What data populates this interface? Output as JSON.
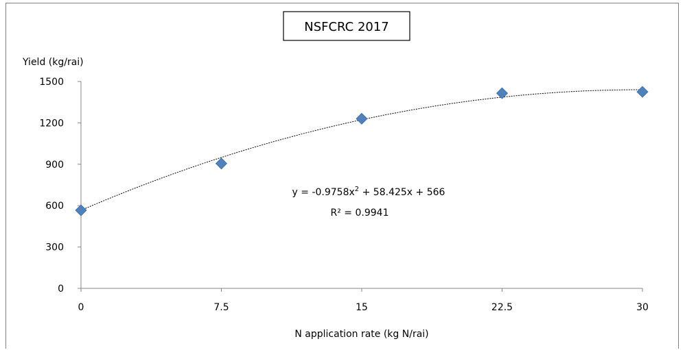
{
  "chart_data": {
    "type": "scatter",
    "title": "NSFCRC 2017",
    "xlabel": "N application rate (kg N/rai)",
    "ylabel": "Yield (kg/rai)",
    "xlim": [
      0,
      30
    ],
    "ylim": [
      0,
      1500
    ],
    "x_ticks": [
      "0",
      "7.5",
      "15",
      "22.5",
      "30"
    ],
    "y_ticks": [
      "0",
      "300",
      "600",
      "900",
      "1200",
      "1500"
    ],
    "series": [
      {
        "x": [
          0,
          7.5,
          15,
          22.5,
          30
        ],
        "y": [
          566,
          905,
          1230,
          1415,
          1425
        ],
        "color": "#4f81bd",
        "marker": "diamond"
      }
    ],
    "trendline": {
      "type": "polynomial",
      "coefficients": [
        -0.9758,
        58.425,
        566
      ],
      "equation_prefix": "y = -0.9758x",
      "equation_sup": "2",
      "equation_suffix": " + 58.425x + 566",
      "r_squared": "R² = 0.9941"
    },
    "grid": false
  }
}
